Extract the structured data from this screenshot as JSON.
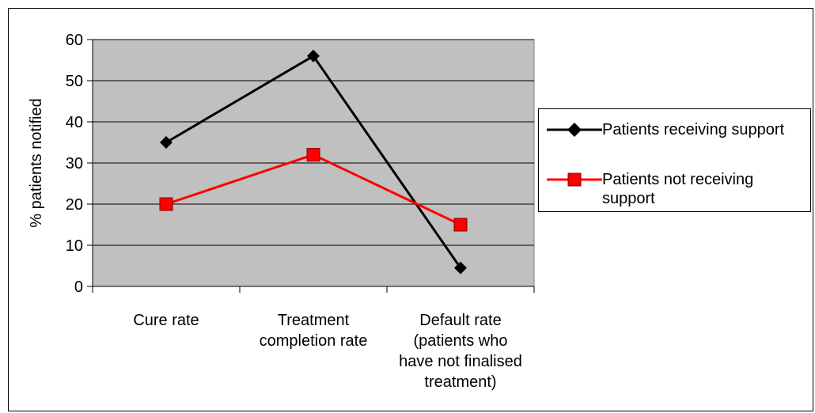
{
  "chart_data": {
    "type": "line",
    "title": "",
    "xlabel": "",
    "ylabel": "% patients notified",
    "ylim": [
      0,
      60
    ],
    "yticks": [
      0,
      10,
      20,
      30,
      40,
      50,
      60
    ],
    "categories": [
      [
        "Cure rate"
      ],
      [
        "Treatment",
        "completion rate"
      ],
      [
        "Default rate",
        "(patients who",
        "have not finalised",
        "treatment)"
      ]
    ],
    "series": [
      {
        "name": "Patients receiving support",
        "values": [
          35,
          56,
          4.5
        ],
        "color": "#000000",
        "marker": "diamond"
      },
      {
        "name": "Patients not receiving support",
        "legend_lines": [
          "Patients not receiving",
          "support"
        ],
        "values": [
          20,
          32,
          15
        ],
        "color": "#ff0000",
        "marker": "square"
      }
    ],
    "grid": true,
    "plot_background": "#c0c0c0",
    "legend_position": "right"
  }
}
